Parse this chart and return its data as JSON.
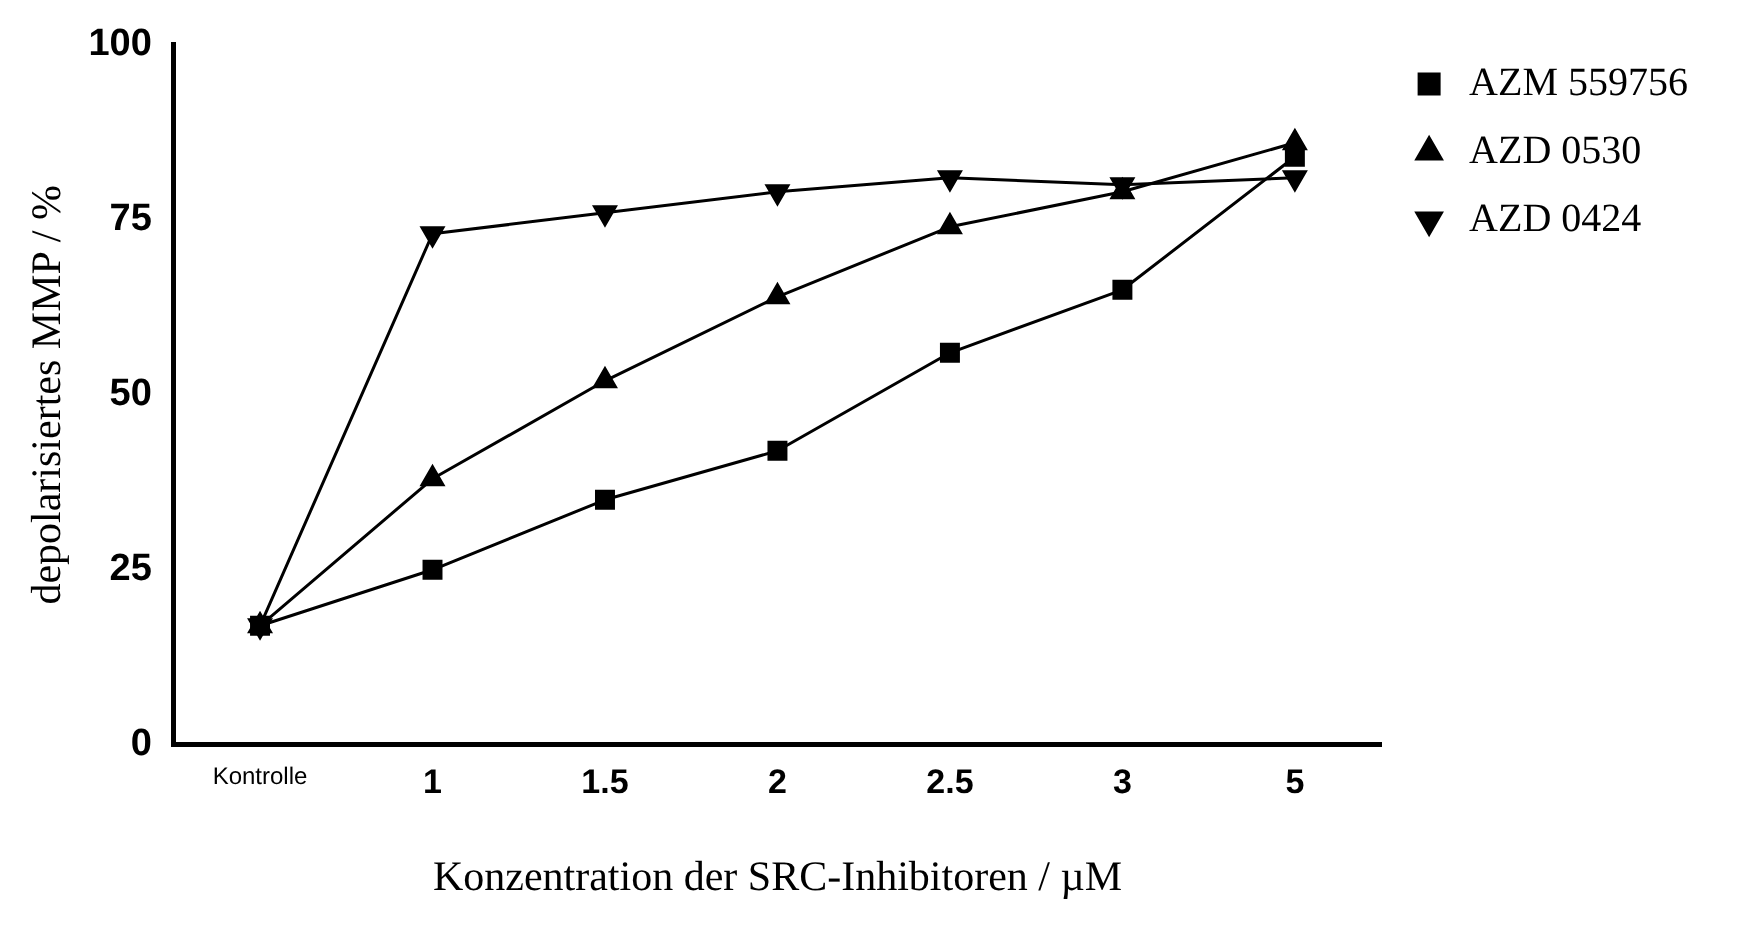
{
  "chart_data": {
    "type": "line",
    "xlabel": "Konzentration der SRC-Inhibitoren / µM",
    "ylabel": "depolarisiertes MMP / %",
    "categories": [
      "Kontrolle",
      "1",
      "1.5",
      "2",
      "2.5",
      "3",
      "5"
    ],
    "ylim": [
      0,
      100
    ],
    "yticks": [
      0,
      25,
      50,
      75,
      100
    ],
    "grid": false,
    "legend": "top right",
    "line_style": "solid",
    "series": [
      {
        "name": "AZM 559756",
        "color": "#000000",
        "marker": "square",
        "values": [
          17,
          25,
          35,
          42,
          56,
          65,
          84
        ]
      },
      {
        "name": "AZD 0530",
        "color": "#000000",
        "marker": "triangle",
        "values": [
          17,
          38,
          52,
          64,
          74,
          79,
          86
        ]
      },
      {
        "name": "AZD 0424",
        "color": "#000000",
        "marker": "triangle-down",
        "values": [
          17,
          73,
          76,
          79,
          81,
          80,
          81
        ]
      }
    ]
  }
}
